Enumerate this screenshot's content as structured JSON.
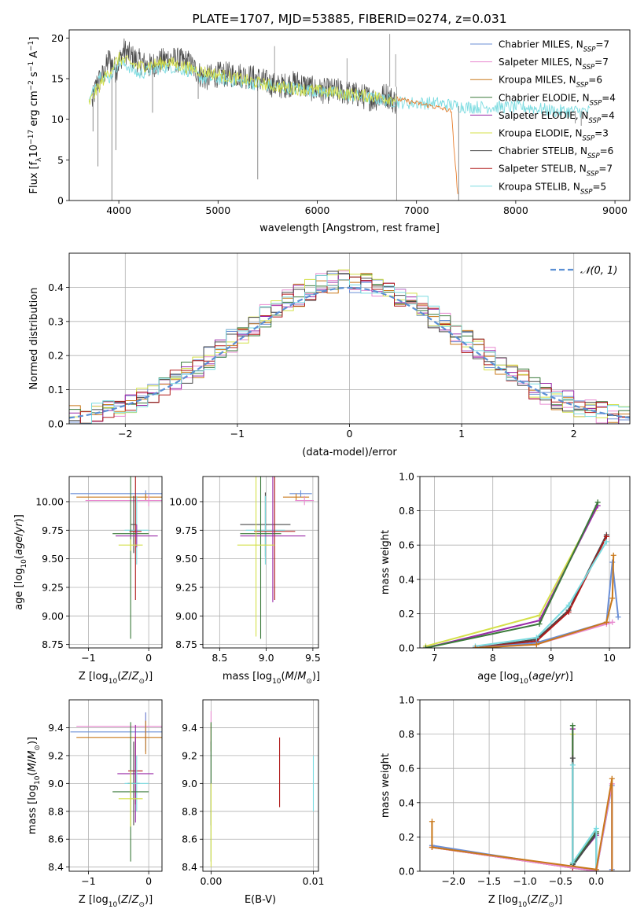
{
  "colors": {
    "chabrier_miles": "#6b8fd6",
    "salpeter_miles": "#e88ad0",
    "kroupa_miles": "#c9781a",
    "chabrier_elodie": "#3a7a3a",
    "salpeter_elodie": "#9a2aa8",
    "kroupa_elodie": "#d4e04a",
    "chabrier_stelib": "#4a4a4a",
    "salpeter_stelib": "#b01a1a",
    "kroupa_stelib": "#7adbe0",
    "normal_curve": "#5b8fd4",
    "grid": "#b0b0b0",
    "orange_track": "#e87c2a"
  },
  "chart_data": [
    {
      "id": "spectrum",
      "type": "line",
      "title": "PLATE=1707, MJD=53885, FIBERID=0274, z=0.031",
      "xlabel": "wavelength [Angstrom, rest frame]",
      "ylabel_parts": [
        "Flux [f",
        "λ",
        "10",
        "−17",
        " erg cm",
        "−2",
        " s",
        "−1",
        " A",
        "−1",
        "]"
      ],
      "xlim": [
        3500,
        9150
      ],
      "ylim": [
        0,
        21
      ],
      "xticks": [
        4000,
        5000,
        6000,
        7000,
        8000,
        9000
      ],
      "yticks": [
        0,
        5,
        10,
        15,
        20
      ],
      "legend": [
        {
          "label": "Chabrier MILES, N",
          "sub": "SSP",
          "eq": "=7",
          "color_key": "chabrier_miles"
        },
        {
          "label": "Salpeter MILES, N",
          "sub": "SSP",
          "eq": "=7",
          "color_key": "salpeter_miles"
        },
        {
          "label": "Kroupa MILES, N",
          "sub": "SSP",
          "eq": "=6",
          "color_key": "kroupa_miles"
        },
        {
          "label": "Chabrier ELODIE, N",
          "sub": "SSP",
          "eq": "=4",
          "color_key": "chabrier_elodie"
        },
        {
          "label": "Salpeter ELODIE, N",
          "sub": "SSP",
          "eq": "=4",
          "color_key": "salpeter_elodie"
        },
        {
          "label": "Kroupa ELODIE, N",
          "sub": "SSP",
          "eq": "=3",
          "color_key": "kroupa_elodie"
        },
        {
          "label": "Chabrier STELIB, N",
          "sub": "SSP",
          "eq": "=6",
          "color_key": "chabrier_stelib"
        },
        {
          "label": "Salpeter STELIB, N",
          "sub": "SSP",
          "eq": "=7",
          "color_key": "salpeter_stelib"
        },
        {
          "label": "Kroupa STELIB, N",
          "sub": "SSP",
          "eq": "=5",
          "color_key": "kroupa_stelib"
        }
      ],
      "legend_position": "upper right",
      "series": [
        {
          "color_key": "chabrier_stelib",
          "x": [
            3730,
            3780,
            3850,
            3900,
            3970,
            4050,
            4150,
            4300,
            4500,
            4700,
            4860,
            5000,
            5200,
            5400,
            5600,
            5800,
            6000,
            6200,
            6400,
            6560,
            6700,
            6800
          ],
          "y": [
            12.0,
            14.5,
            15.5,
            17.5,
            16.0,
            18.5,
            17.5,
            16.5,
            17.5,
            17.0,
            15.0,
            15.5,
            15.5,
            15.0,
            14.0,
            14.5,
            13.5,
            13.5,
            13.0,
            12.5,
            13.0,
            12.0
          ]
        },
        {
          "color_key": "kroupa_stelib",
          "x": [
            3700,
            3800,
            3900,
            4000,
            4100,
            4200,
            4300,
            4500,
            4700,
            4860,
            5000,
            5300,
            5600,
            6000,
            6300,
            6600,
            6900,
            7200,
            7500,
            7800,
            8100,
            8400,
            8600,
            8750
          ],
          "y": [
            12.0,
            15.5,
            15.0,
            17.0,
            16.5,
            15.5,
            16.0,
            16.5,
            16.0,
            15.0,
            15.0,
            14.5,
            14.0,
            13.5,
            13.0,
            12.5,
            12.0,
            12.0,
            11.5,
            11.5,
            11.5,
            11.0,
            11.0,
            11.0
          ]
        },
        {
          "color_key": "kroupa_elodie",
          "x": [
            3700,
            3850,
            4000,
            4200,
            4500,
            4800,
            5200,
            5600,
            6000,
            6400,
            6800
          ],
          "y": [
            12.0,
            15.0,
            17.5,
            16.5,
            17.0,
            16.0,
            15.0,
            14.0,
            13.5,
            13.0,
            12.5
          ]
        },
        {
          "color_key": "orange_track",
          "x": [
            6800,
            7000,
            7200,
            7350,
            7420
          ],
          "y": [
            12.5,
            12.0,
            11.5,
            11.0,
            0.0
          ]
        }
      ]
    },
    {
      "id": "residuals",
      "type": "line",
      "xlabel": "(data-model)/error",
      "ylabel": "Normed distribution",
      "xlim": [
        -2.5,
        2.5
      ],
      "ylim": [
        0,
        0.5
      ],
      "xticks": [
        -2,
        -1,
        0,
        1,
        2
      ],
      "yticks": [
        0.0,
        0.1,
        0.2,
        0.3,
        0.4
      ],
      "legend": [
        {
          "label": "𝒩(0, 1)",
          "color_key": "normal_curve",
          "style": "dashed"
        }
      ],
      "legend_position": "upper right",
      "bins": 50,
      "series": [
        {
          "color_key": "chabrier_miles"
        },
        {
          "color_key": "salpeter_miles"
        },
        {
          "color_key": "kroupa_miles"
        },
        {
          "color_key": "chabrier_elodie"
        },
        {
          "color_key": "salpeter_elodie"
        },
        {
          "color_key": "kroupa_elodie"
        },
        {
          "color_key": "chabrier_stelib"
        },
        {
          "color_key": "salpeter_stelib"
        },
        {
          "color_key": "kroupa_stelib"
        }
      ]
    },
    {
      "id": "z_age",
      "type": "scatter",
      "xlabel": "Z [log10(Z/Z⊙)]",
      "ylabel": "age  [log10(age/yr)]",
      "xlim": [
        -1.32,
        0.22
      ],
      "ylim": [
        8.72,
        10.22
      ],
      "xticks": [
        -1,
        0
      ],
      "yticks": [
        8.75,
        9.0,
        9.25,
        9.5,
        9.75,
        10.0
      ],
      "points": [
        {
          "color_key": "chabrier_miles",
          "x": -0.05,
          "xerr": 1.25,
          "y": 10.07,
          "yerr": 0.03
        },
        {
          "color_key": "kroupa_miles",
          "x": -0.05,
          "xerr": 1.15,
          "y": 10.04,
          "yerr": 0.03
        },
        {
          "color_key": "salpeter_miles",
          "x": 0.0,
          "xerr": 1.05,
          "y": 10.01,
          "yerr": 0.05
        },
        {
          "color_key": "chabrier_stelib",
          "x": -0.25,
          "xerr": 0.05,
          "y": 9.8,
          "yerr": 0.25
        },
        {
          "color_key": "kroupa_stelib",
          "x": -0.2,
          "xerr": 0.2,
          "y": 9.75,
          "yerr": 0.3
        },
        {
          "color_key": "salpeter_stelib",
          "x": -0.22,
          "xerr": 0.1,
          "y": 9.74,
          "yerr": 0.6
        },
        {
          "color_key": "chabrier_elodie",
          "x": -0.3,
          "xerr": 0.3,
          "y": 9.72,
          "yerr": 0.92
        },
        {
          "color_key": "salpeter_elodie",
          "x": -0.2,
          "xerr": 0.35,
          "y": 9.7,
          "yerr": 0.1
        },
        {
          "color_key": "kroupa_elodie",
          "x": -0.3,
          "xerr": 0.2,
          "y": 9.62,
          "yerr": 0.05
        }
      ]
    },
    {
      "id": "mass_age",
      "type": "scatter",
      "xlabel": "mass [log10(M/M⊙)]",
      "ylabel": "",
      "xlim": [
        8.32,
        9.56
      ],
      "ylim": [
        8.72,
        10.22
      ],
      "xticks": [
        8.5,
        9.0,
        9.5
      ],
      "yticks": [
        8.75,
        9.0,
        9.25,
        9.5,
        9.75,
        10.0
      ],
      "points": [
        {
          "color_key": "chabrier_miles",
          "x": 9.37,
          "xerr": 0.12,
          "y": 10.07,
          "yerr": 0.03
        },
        {
          "color_key": "kroupa_miles",
          "x": 9.32,
          "xerr": 0.14,
          "y": 10.04,
          "yerr": 0.03
        },
        {
          "color_key": "salpeter_miles",
          "x": 9.41,
          "xerr": 0.1,
          "y": 10.01,
          "yerr": 0.04
        },
        {
          "color_key": "chabrier_stelib",
          "x": 8.99,
          "xerr": 0.27,
          "y": 9.8,
          "yerr": 0.28
        },
        {
          "color_key": "kroupa_stelib",
          "x": 8.99,
          "xerr": 0.21,
          "y": 9.75,
          "yerr": 0.3
        },
        {
          "color_key": "salpeter_stelib",
          "x": 9.09,
          "xerr": 0.22,
          "y": 9.74,
          "yerr": 0.6
        },
        {
          "color_key": "chabrier_elodie",
          "x": 8.94,
          "xerr": 0.22,
          "y": 9.72,
          "yerr": 0.92
        },
        {
          "color_key": "salpeter_elodie",
          "x": 9.07,
          "xerr": 0.35,
          "y": 9.7,
          "yerr": 0.58
        },
        {
          "color_key": "kroupa_elodie",
          "x": 8.89,
          "xerr": 0.2,
          "y": 9.62,
          "yerr": 0.8
        }
      ]
    },
    {
      "id": "age_weight",
      "type": "line",
      "xlabel": "age  [log10(age/yr)]",
      "ylabel": "mass weight",
      "xlim": [
        6.75,
        10.35
      ],
      "ylim": [
        0,
        1
      ],
      "xticks": [
        7,
        8,
        9,
        10
      ],
      "yticks": [
        0.0,
        0.2,
        0.4,
        0.6,
        0.8,
        1.0
      ],
      "series": [
        {
          "color_key": "kroupa_elodie",
          "x": [
            6.85,
            8.8,
            9.75
          ],
          "y": [
            0.01,
            0.19,
            0.8
          ]
        },
        {
          "color_key": "salpeter_elodie",
          "x": [
            6.85,
            8.8,
            9.8
          ],
          "y": [
            0.0,
            0.16,
            0.83
          ]
        },
        {
          "color_key": "chabrier_elodie",
          "x": [
            6.85,
            8.8,
            9.8
          ],
          "y": [
            0.0,
            0.14,
            0.85
          ]
        },
        {
          "color_key": "chabrier_stelib",
          "x": [
            7.7,
            8.75,
            9.3,
            9.95
          ],
          "y": [
            0.0,
            0.05,
            0.22,
            0.66
          ]
        },
        {
          "color_key": "salpeter_stelib",
          "x": [
            7.7,
            8.75,
            9.3,
            9.95
          ],
          "y": [
            0.0,
            0.04,
            0.21,
            0.65
          ]
        },
        {
          "color_key": "kroupa_stelib",
          "x": [
            7.7,
            8.75,
            9.3,
            9.95
          ],
          "y": [
            0.01,
            0.06,
            0.25,
            0.62
          ]
        },
        {
          "color_key": "chabrier_miles",
          "x": [
            7.7,
            8.75,
            9.95,
            10.05,
            10.15
          ],
          "y": [
            0.0,
            0.03,
            0.15,
            0.5,
            0.18
          ]
        },
        {
          "color_key": "salpeter_miles",
          "x": [
            7.7,
            8.75,
            9.95,
            10.05
          ],
          "y": [
            0.0,
            0.02,
            0.14,
            0.15
          ]
        },
        {
          "color_key": "kroupa_miles",
          "x": [
            7.7,
            8.75,
            9.95,
            10.05,
            10.07
          ],
          "y": [
            0.0,
            0.02,
            0.15,
            0.29,
            0.54
          ]
        }
      ]
    },
    {
      "id": "z_mass",
      "type": "scatter",
      "xlabel": "Z [log10(Z/Z⊙)]",
      "ylabel": "mass [log10(M/M⊙)]",
      "xlim": [
        -1.32,
        0.22
      ],
      "ylim": [
        8.37,
        9.6
      ],
      "xticks": [
        -1,
        0
      ],
      "yticks": [
        8.4,
        8.6,
        8.8,
        9.0,
        9.2,
        9.4
      ],
      "points": [
        {
          "color_key": "salpeter_miles",
          "x": -0.05,
          "xerr": 1.15,
          "y": 9.41,
          "yerr": 0.1
        },
        {
          "color_key": "chabrier_miles",
          "x": -0.05,
          "xerr": 1.25,
          "y": 9.37,
          "yerr": 0.14
        },
        {
          "color_key": "kroupa_miles",
          "x": -0.05,
          "xerr": 1.15,
          "y": 9.33,
          "yerr": 0.12
        },
        {
          "color_key": "salpeter_stelib",
          "x": -0.22,
          "xerr": 0.12,
          "y": 9.09,
          "yerr": 0.24
        },
        {
          "color_key": "salpeter_elodie",
          "x": -0.22,
          "xerr": 0.3,
          "y": 9.07,
          "yerr": 0.35
        },
        {
          "color_key": "chabrier_stelib",
          "x": -0.25,
          "xerr": 0.1,
          "y": 9.0,
          "yerr": 0.3
        },
        {
          "color_key": "kroupa_stelib",
          "x": -0.2,
          "xerr": 0.2,
          "y": 9.0,
          "yerr": 0.2
        },
        {
          "color_key": "chabrier_elodie",
          "x": -0.3,
          "xerr": 0.3,
          "y": 8.94,
          "yerr": 0.5
        },
        {
          "color_key": "kroupa_elodie",
          "x": -0.3,
          "xerr": 0.2,
          "y": 8.89,
          "yerr": 0.2
        }
      ]
    },
    {
      "id": "ebv_mass",
      "type": "scatter",
      "xlabel": "E(B-V)",
      "ylabel": "",
      "xlim": [
        -0.0008,
        0.0105
      ],
      "ylim": [
        8.37,
        9.6
      ],
      "xticks": [
        0.0,
        0.01
      ],
      "yticks": [
        8.4,
        8.6,
        8.8,
        9.0,
        9.2,
        9.4
      ],
      "points": [
        {
          "color_key": "salpeter_miles",
          "x": 0.0,
          "y": 9.4,
          "yerr": 0.12
        },
        {
          "color_key": "kroupa_miles",
          "x": 0.0,
          "y": 9.33,
          "yerr": 0.1
        },
        {
          "color_key": "chabrier_stelib",
          "x": 0.0,
          "y": 9.0,
          "yerr": 0.3
        },
        {
          "color_key": "chabrier_elodie",
          "x": 0.0,
          "y": 8.94,
          "yerr": 0.5
        },
        {
          "color_key": "kroupa_elodie",
          "x": 0.0,
          "y": 8.7,
          "yerr": 0.3
        },
        {
          "color_key": "salpeter_stelib",
          "x": 0.0067,
          "y": 9.08,
          "yerr": 0.25
        },
        {
          "color_key": "kroupa_stelib",
          "x": 0.01,
          "y": 9.0,
          "yerr": 0.2
        }
      ]
    },
    {
      "id": "z_weight",
      "type": "line",
      "xlabel": "Z [log10(Z/Z⊙)]",
      "ylabel": "mass weight",
      "xlim": [
        -2.47,
        0.47
      ],
      "ylim": [
        0,
        1
      ],
      "xticks": [
        -2.0,
        -1.5,
        -1.0,
        -0.5,
        0.0
      ],
      "yticks": [
        0.0,
        0.2,
        0.4,
        0.6,
        0.8,
        1.0
      ],
      "series": [
        {
          "color_key": "kroupa_elodie",
          "x": [
            -0.33,
            -0.33,
            0.0
          ],
          "y": [
            0.8,
            0.05,
            0.22
          ]
        },
        {
          "color_key": "salpeter_elodie",
          "x": [
            -0.33,
            -0.33,
            0.0
          ],
          "y": [
            0.83,
            0.04,
            0.21
          ]
        },
        {
          "color_key": "chabrier_elodie",
          "x": [
            -0.33,
            -0.33,
            0.0
          ],
          "y": [
            0.85,
            0.04,
            0.23
          ]
        },
        {
          "color_key": "chabrier_stelib",
          "x": [
            -0.33,
            -0.33,
            0.0,
            0.0
          ],
          "y": [
            0.66,
            0.03,
            0.22,
            0.0
          ]
        },
        {
          "color_key": "kroupa_stelib",
          "x": [
            -0.33,
            -0.33,
            0.0,
            0.0
          ],
          "y": [
            0.62,
            0.05,
            0.25,
            0.01
          ]
        },
        {
          "color_key": "salpeter_stelib",
          "x": [
            -2.3,
            -0.33,
            0.0
          ],
          "y": [
            0.14,
            0.02,
            0.0
          ]
        },
        {
          "color_key": "chabrier_miles",
          "x": [
            -2.3,
            0.0,
            0.22,
            0.22
          ],
          "y": [
            0.15,
            0.0,
            0.5,
            0.01
          ]
        },
        {
          "color_key": "salpeter_miles",
          "x": [
            -2.3,
            0.0,
            0.22,
            0.22
          ],
          "y": [
            0.14,
            0.0,
            0.51,
            0.0
          ]
        },
        {
          "color_key": "kroupa_miles",
          "x": [
            -2.3,
            -2.3,
            0.0,
            0.22,
            0.22
          ],
          "y": [
            0.29,
            0.14,
            0.01,
            0.54,
            0.0
          ]
        }
      ]
    }
  ]
}
